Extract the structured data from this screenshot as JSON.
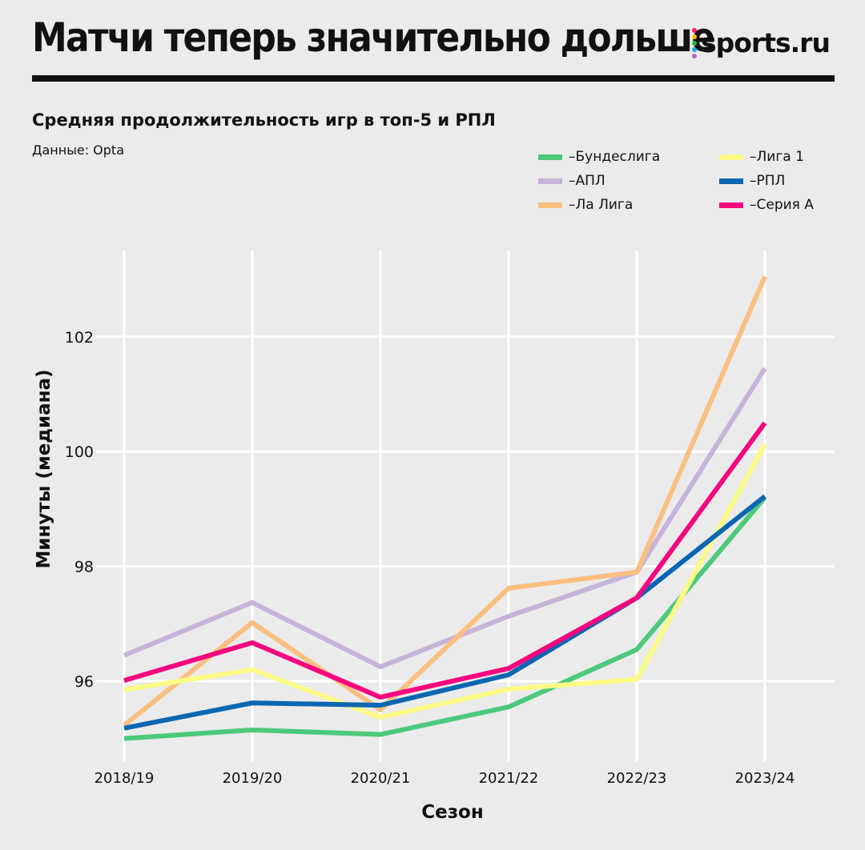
{
  "header": {
    "title": "Матчи теперь значительно дольше",
    "logo": "sports.ru",
    "logo_dot_colors": [
      "#ff1f5a",
      "#ffc400",
      "#1fb83a",
      "#1aa8f0",
      "#b36cc0"
    ]
  },
  "subtitle": "Средняя продолжительность игр в топ-5 и РПЛ",
  "source": "Данные: Opta",
  "chart_data": {
    "type": "line",
    "xlabel": "Сезон",
    "ylabel": "Минуты (медиана)",
    "categories": [
      "2018/19",
      "2019/20",
      "2020/21",
      "2021/22",
      "2022/23",
      "2023/24"
    ],
    "yticks": [
      96,
      98,
      100,
      102
    ],
    "ylim": [
      94.6,
      103.5
    ],
    "grid": true,
    "legend_placement": "top-right",
    "series": [
      {
        "name": "Бундеслига",
        "color": "#4cc97a",
        "values": [
          95.0,
          95.15,
          95.07,
          95.55,
          96.55,
          99.2
        ]
      },
      {
        "name": "АПЛ",
        "color": "#c6b3d9",
        "values": [
          96.45,
          97.37,
          96.25,
          97.13,
          97.9,
          101.45
        ]
      },
      {
        "name": "Ла Лига",
        "color": "#fbbf80",
        "values": [
          95.23,
          97.02,
          95.5,
          97.62,
          97.9,
          103.05
        ]
      },
      {
        "name": "Лига 1",
        "color": "#fbfb86",
        "values": [
          95.85,
          96.2,
          95.37,
          95.86,
          96.03,
          100.13
        ]
      },
      {
        "name": "РПЛ",
        "color": "#0b67b2",
        "values": [
          95.18,
          95.62,
          95.58,
          96.11,
          97.45,
          99.22
        ]
      },
      {
        "name": "Серия А",
        "color": "#f6067f",
        "values": [
          96.01,
          96.67,
          95.72,
          96.22,
          97.45,
          100.5
        ]
      }
    ]
  }
}
